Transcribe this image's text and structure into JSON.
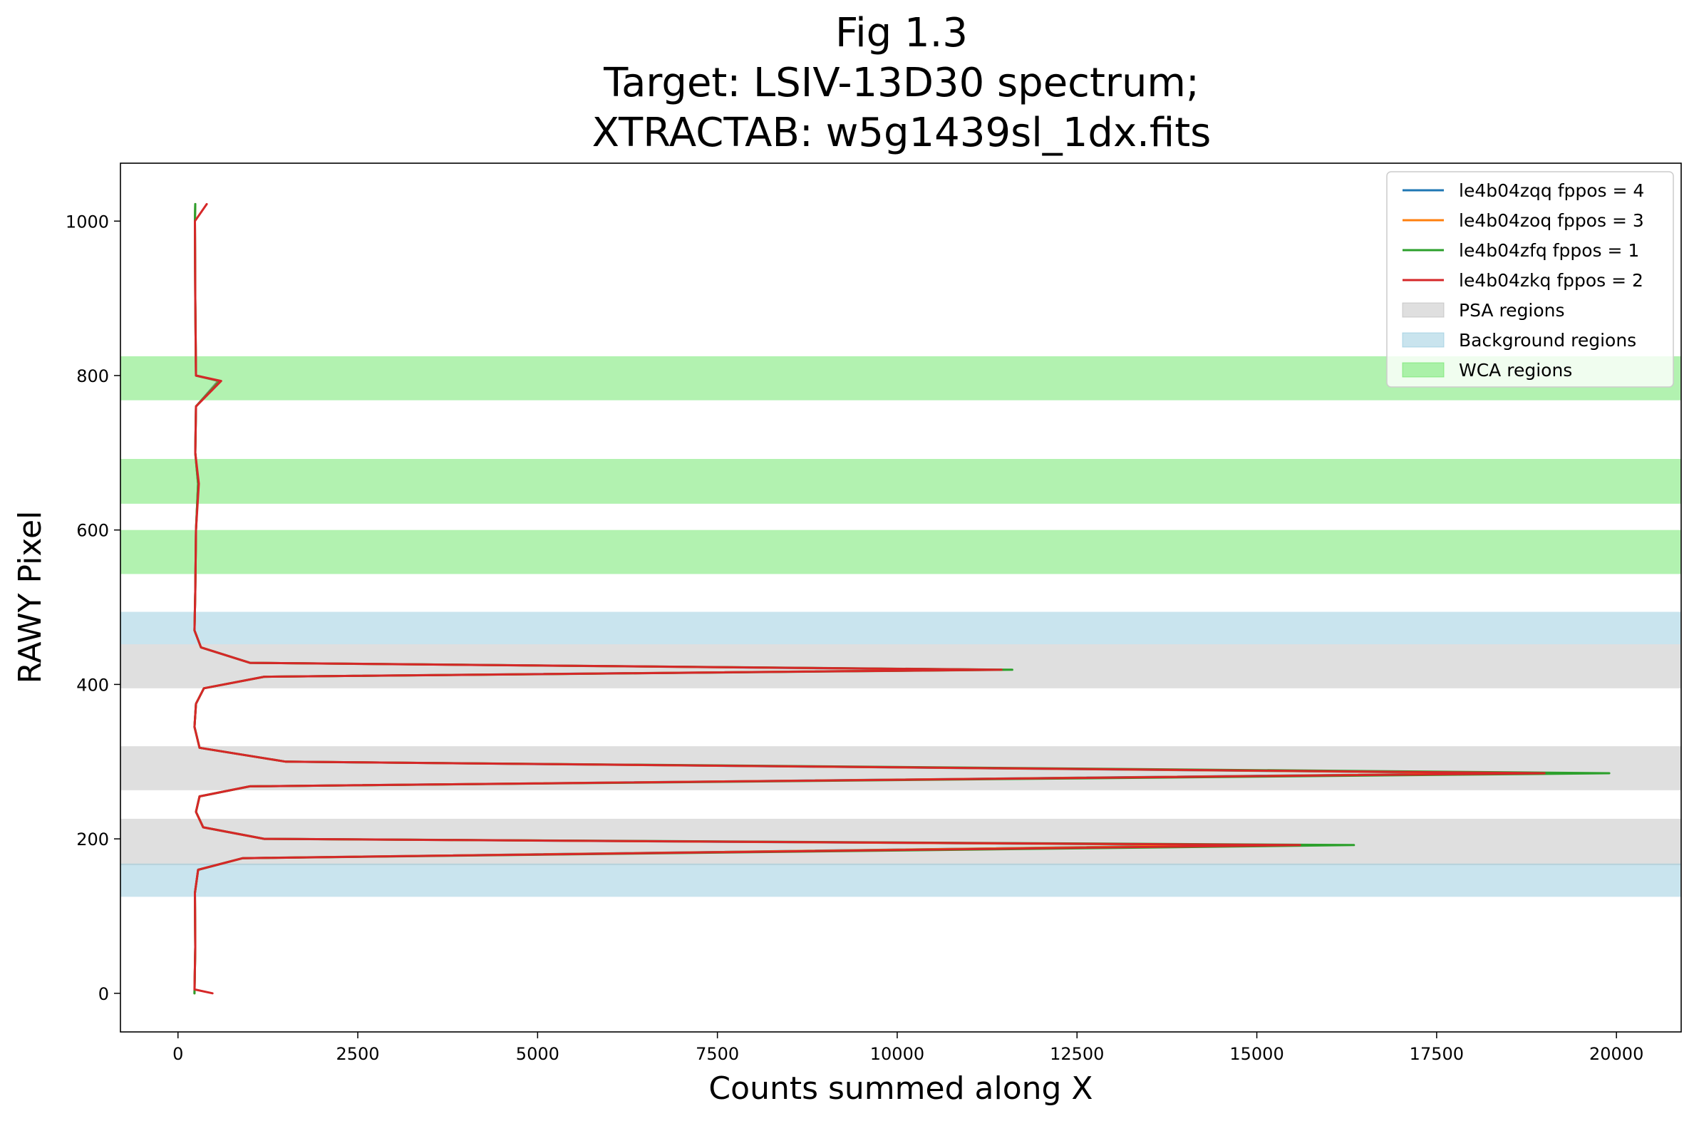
{
  "chart_data": {
    "type": "line",
    "title_lines": [
      "Fig 1.3",
      "Target: LSIV-13D30 spectrum;",
      "XTRACTAB: w5g1439sl_1dx.fits"
    ],
    "xlabel": "Counts summed along X",
    "ylabel": "RAWY Pixel",
    "xlim": [
      -800,
      20900
    ],
    "ylim": [
      -50,
      1075
    ],
    "xticks": [
      0,
      2500,
      5000,
      7500,
      10000,
      12500,
      15000,
      17500,
      20000
    ],
    "yticks": [
      0,
      200,
      400,
      600,
      800,
      1000
    ],
    "grid": false,
    "legend_position": "top-right",
    "regions": [
      {
        "kind": "PSA",
        "name": "PSA regions",
        "color": "#b0b0b0",
        "opacity": 0.4,
        "y0": 166,
        "y1": 226
      },
      {
        "kind": "PSA",
        "name": "PSA regions",
        "color": "#b0b0b0",
        "opacity": 0.4,
        "y0": 263,
        "y1": 320
      },
      {
        "kind": "PSA",
        "name": "PSA regions",
        "color": "#b0b0b0",
        "opacity": 0.4,
        "y0": 395,
        "y1": 452
      },
      {
        "kind": "Background",
        "name": "Background regions",
        "color": "#87c3d9",
        "opacity": 0.45,
        "y0": 125,
        "y1": 168
      },
      {
        "kind": "Background",
        "name": "Background regions",
        "color": "#87c3d9",
        "opacity": 0.45,
        "y0": 452,
        "y1": 494
      },
      {
        "kind": "WCA",
        "name": "WCA regions",
        "color": "#5fe35a",
        "opacity": 0.48,
        "y0": 543,
        "y1": 600
      },
      {
        "kind": "WCA",
        "name": "WCA regions",
        "color": "#5fe35a",
        "opacity": 0.48,
        "y0": 634,
        "y1": 692
      },
      {
        "kind": "WCA",
        "name": "WCA regions",
        "color": "#5fe35a",
        "opacity": 0.48,
        "y0": 768,
        "y1": 825
      }
    ],
    "series": [
      {
        "name": "le4b04zqq fppos = 4",
        "color": "#1f77b4",
        "points": [
          [
            230,
            0
          ],
          [
            240,
            60
          ],
          [
            235,
            130
          ],
          [
            280,
            160
          ],
          [
            900,
            175
          ],
          [
            14800,
            192
          ],
          [
            1200,
            200
          ],
          [
            350,
            215
          ],
          [
            250,
            235
          ],
          [
            300,
            255
          ],
          [
            1000,
            268
          ],
          [
            18500,
            285
          ],
          [
            1500,
            300
          ],
          [
            300,
            318
          ],
          [
            230,
            345
          ],
          [
            250,
            375
          ],
          [
            360,
            395
          ],
          [
            1200,
            410
          ],
          [
            11200,
            419
          ],
          [
            1000,
            428
          ],
          [
            320,
            448
          ],
          [
            230,
            470
          ],
          [
            240,
            520
          ],
          [
            250,
            600
          ],
          [
            280,
            660
          ],
          [
            240,
            700
          ],
          [
            250,
            760
          ],
          [
            560,
            793
          ],
          [
            250,
            800
          ],
          [
            240,
            900
          ],
          [
            235,
            1000
          ],
          [
            240,
            1022
          ]
        ]
      },
      {
        "name": "le4b04zoq fppos = 3",
        "color": "#ff7f0e",
        "points": [
          [
            230,
            0
          ],
          [
            240,
            60
          ],
          [
            235,
            130
          ],
          [
            280,
            160
          ],
          [
            900,
            175
          ],
          [
            15000,
            192
          ],
          [
            1200,
            200
          ],
          [
            350,
            215
          ],
          [
            250,
            235
          ],
          [
            300,
            255
          ],
          [
            1000,
            268
          ],
          [
            18700,
            285
          ],
          [
            1500,
            300
          ],
          [
            300,
            318
          ],
          [
            230,
            345
          ],
          [
            250,
            375
          ],
          [
            360,
            395
          ],
          [
            1200,
            410
          ],
          [
            11300,
            419
          ],
          [
            1000,
            428
          ],
          [
            320,
            448
          ],
          [
            230,
            470
          ],
          [
            240,
            520
          ],
          [
            250,
            600
          ],
          [
            280,
            660
          ],
          [
            240,
            700
          ],
          [
            250,
            760
          ],
          [
            570,
            793
          ],
          [
            250,
            800
          ],
          [
            240,
            900
          ],
          [
            235,
            1000
          ],
          [
            240,
            1022
          ]
        ]
      },
      {
        "name": "le4b04zfq fppos = 1",
        "color": "#2ca02c",
        "points": [
          [
            230,
            0
          ],
          [
            240,
            60
          ],
          [
            235,
            130
          ],
          [
            280,
            160
          ],
          [
            900,
            175
          ],
          [
            16350,
            192
          ],
          [
            1200,
            200
          ],
          [
            350,
            215
          ],
          [
            250,
            235
          ],
          [
            300,
            255
          ],
          [
            1000,
            268
          ],
          [
            19900,
            285
          ],
          [
            1500,
            300
          ],
          [
            300,
            318
          ],
          [
            230,
            345
          ],
          [
            250,
            375
          ],
          [
            360,
            395
          ],
          [
            1200,
            410
          ],
          [
            11600,
            419
          ],
          [
            1000,
            428
          ],
          [
            320,
            448
          ],
          [
            230,
            470
          ],
          [
            240,
            520
          ],
          [
            250,
            600
          ],
          [
            280,
            660
          ],
          [
            240,
            700
          ],
          [
            250,
            760
          ],
          [
            580,
            793
          ],
          [
            250,
            800
          ],
          [
            240,
            900
          ],
          [
            235,
            1000
          ],
          [
            240,
            1022
          ]
        ]
      },
      {
        "name": "le4b04zkq fppos = 2",
        "color": "#d62728",
        "points": [
          [
            480,
            0
          ],
          [
            230,
            5
          ],
          [
            240,
            60
          ],
          [
            235,
            130
          ],
          [
            280,
            160
          ],
          [
            900,
            175
          ],
          [
            15600,
            192
          ],
          [
            1200,
            200
          ],
          [
            350,
            215
          ],
          [
            250,
            235
          ],
          [
            300,
            255
          ],
          [
            1000,
            268
          ],
          [
            19000,
            285
          ],
          [
            1500,
            300
          ],
          [
            300,
            318
          ],
          [
            230,
            345
          ],
          [
            250,
            375
          ],
          [
            360,
            395
          ],
          [
            1200,
            410
          ],
          [
            11450,
            419
          ],
          [
            1000,
            428
          ],
          [
            320,
            448
          ],
          [
            230,
            470
          ],
          [
            240,
            520
          ],
          [
            250,
            600
          ],
          [
            290,
            660
          ],
          [
            240,
            700
          ],
          [
            250,
            760
          ],
          [
            600,
            793
          ],
          [
            250,
            800
          ],
          [
            240,
            900
          ],
          [
            235,
            1000
          ],
          [
            400,
            1022
          ]
        ]
      }
    ],
    "legend_entries": [
      {
        "name": "le4b04zqq fppos = 4",
        "kind": "line",
        "color": "#1f77b4"
      },
      {
        "name": "le4b04zoq fppos = 3",
        "kind": "line",
        "color": "#ff7f0e"
      },
      {
        "name": "le4b04zfq fppos = 1",
        "kind": "line",
        "color": "#2ca02c"
      },
      {
        "name": "le4b04zkq fppos = 2",
        "kind": "line",
        "color": "#d62728"
      },
      {
        "name": "PSA regions",
        "kind": "patch",
        "color": "#b0b0b0",
        "opacity": 0.4
      },
      {
        "name": "Background regions",
        "kind": "patch",
        "color": "#87c3d9",
        "opacity": 0.45
      },
      {
        "name": "WCA regions",
        "kind": "patch",
        "color": "#5fe35a",
        "opacity": 0.48
      }
    ]
  }
}
